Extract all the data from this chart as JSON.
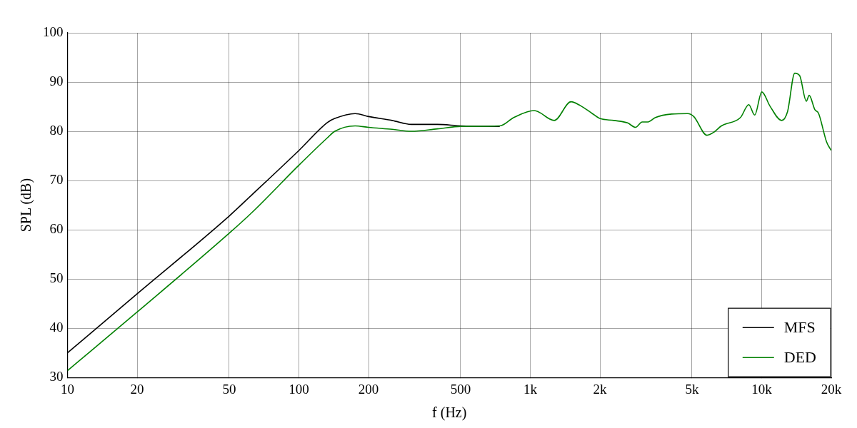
{
  "chart_data": {
    "type": "line",
    "xlabel": "f (Hz)",
    "ylabel": "SPL (dB)",
    "log": "x",
    "grid": true,
    "legend": "bottom right",
    "marker": "none",
    "line_style": "solid",
    "xlim": [
      10,
      20000
    ],
    "ylim": [
      30,
      100
    ],
    "xticks": [
      10,
      20,
      50,
      100,
      200,
      500,
      {
        "value": 1000,
        "label": "1k"
      },
      {
        "value": 2000,
        "label": "2k"
      },
      {
        "value": 5000,
        "label": "5k"
      },
      {
        "value": 10000,
        "label": "10k"
      },
      {
        "value": 20000,
        "label": "20k"
      }
    ],
    "yticks": [
      30,
      40,
      50,
      60,
      70,
      80,
      90,
      100
    ],
    "series": [
      {
        "name": "MFS",
        "color": "#000000",
        "x": [
          10,
          20,
          50,
          63,
          100,
          133,
          143,
          175,
          200,
          253,
          306,
          397,
          504,
          738
        ],
        "values": [
          35.0,
          47.0,
          62.8,
          67.2,
          76.1,
          81.8,
          82.6,
          83.6,
          83.0,
          82.2,
          81.4,
          81.4,
          81.1,
          81.0
        ]
      },
      {
        "name": "DED",
        "color": "#008000",
        "x": [
          10,
          20,
          50,
          63,
          100,
          133,
          143,
          175,
          200,
          253,
          306,
          397,
          504,
          738,
          849,
          1040,
          1270,
          1500,
          1648,
          1855,
          2000,
          2301,
          2635,
          2850,
          3045,
          3225,
          3475,
          4080,
          4790,
          5090,
          5800,
          6250,
          6700,
          8100,
          8800,
          9330,
          10020,
          10870,
          12200,
          12940,
          13900,
          14600,
          15600,
          16050,
          16980,
          17600,
          19100,
          20000
        ],
        "values": [
          31.4,
          43.3,
          59.3,
          63.6,
          73.1,
          78.7,
          80.0,
          81.1,
          80.8,
          80.4,
          80.0,
          80.5,
          81.0,
          81.1,
          82.8,
          84.2,
          82.2,
          86.0,
          85.2,
          83.6,
          82.6,
          82.2,
          81.7,
          80.8,
          81.9,
          81.9,
          82.8,
          83.5,
          83.6,
          83.0,
          79.2,
          79.9,
          81.1,
          82.8,
          85.4,
          83.3,
          88.0,
          85.1,
          82.2,
          84.0,
          91.8,
          91.3,
          86.1,
          87.3,
          84.4,
          83.7,
          77.8,
          76.1
        ]
      }
    ]
  }
}
